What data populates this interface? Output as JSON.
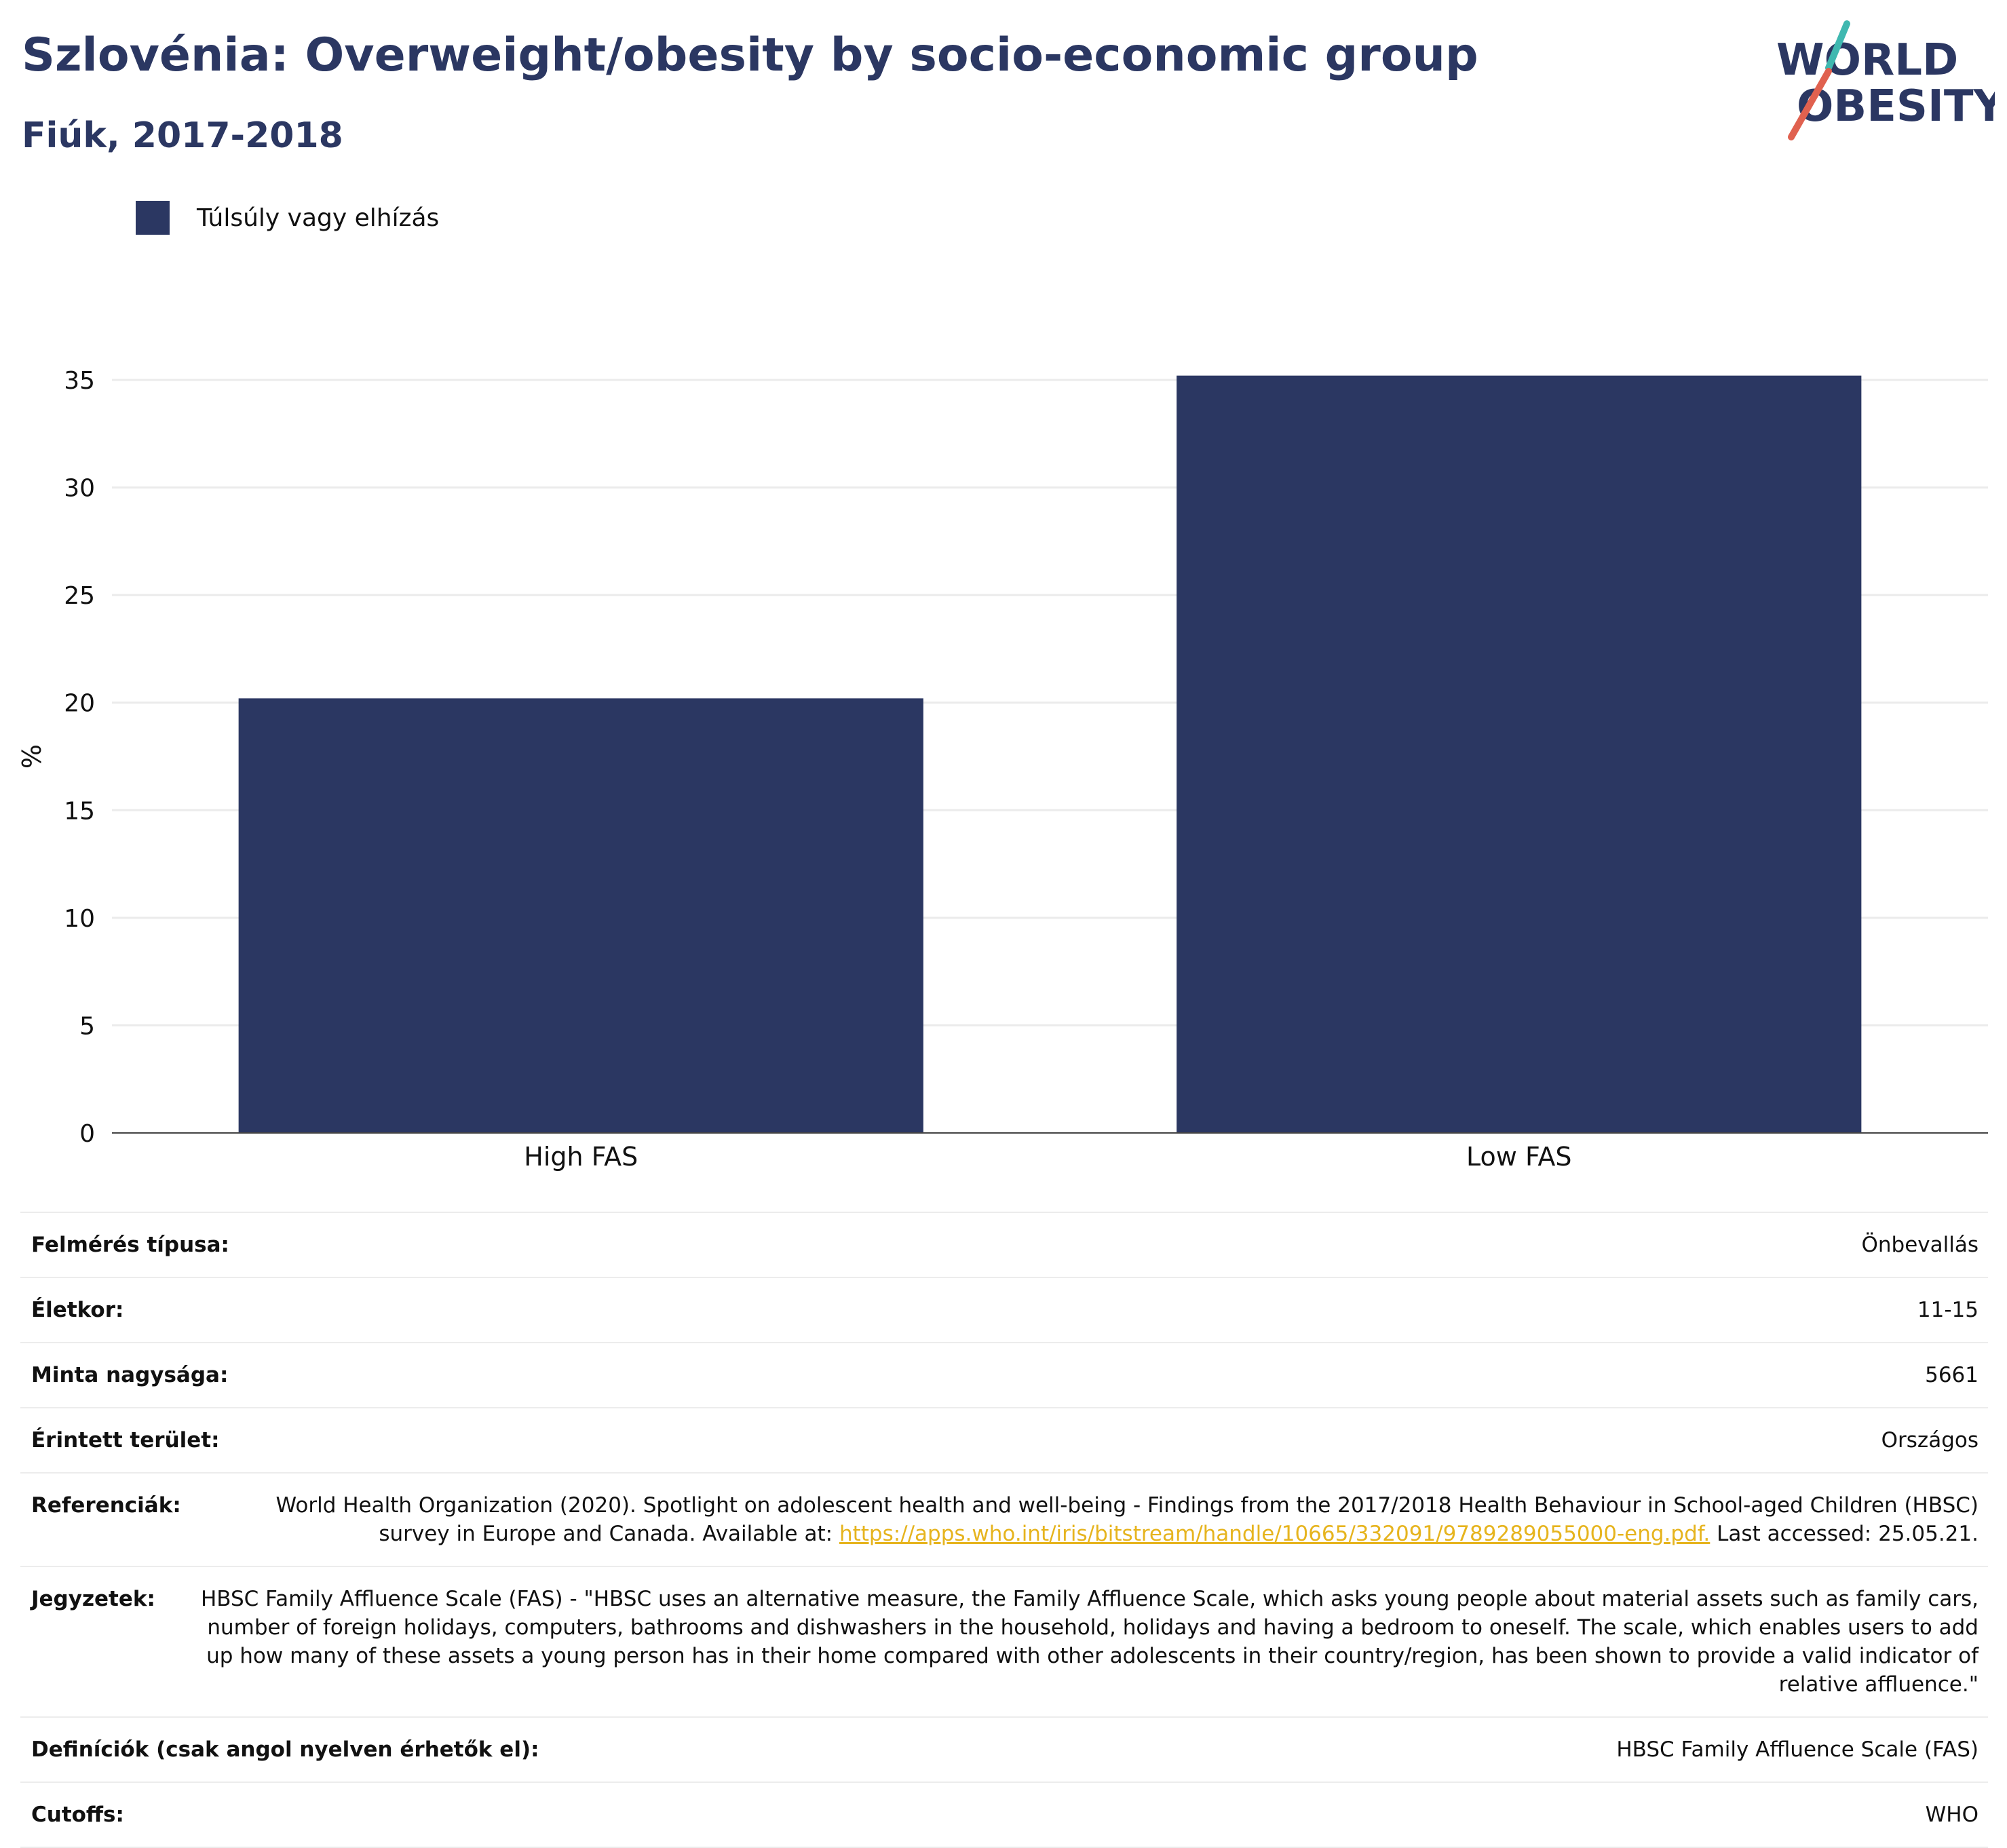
{
  "title": "Szlovénia: Overweight/obesity by socio-economic group",
  "subtitle": "Fiúk, 2017-2018",
  "logo": {
    "line1": "WORLD",
    "line2": "OBESITY"
  },
  "colors": {
    "bar": "#2b3762",
    "title": "#2b3762",
    "link": "#e6b41e",
    "logo_teal": "#3fb8b0",
    "logo_red": "#e0614f"
  },
  "chart_data": {
    "type": "bar",
    "categories": [
      "High FAS",
      "Low FAS"
    ],
    "series": [
      {
        "name": "Túlsúly vagy elhízás",
        "values": [
          20.2,
          35.2
        ]
      }
    ],
    "ylabel": "%",
    "xlabel": "",
    "ylim": [
      0,
      35
    ],
    "yticks": [
      0,
      5,
      10,
      15,
      20,
      25,
      30,
      35
    ],
    "grid": true,
    "legend": "top-left"
  },
  "info": [
    {
      "label": "Felmérés típusa:",
      "value": "Önbevallás"
    },
    {
      "label": "Életkor:",
      "value": "11-15"
    },
    {
      "label": "Minta nagysága:",
      "value": "5661"
    },
    {
      "label": "Érintett terület:",
      "value": "Országos"
    },
    {
      "label": "Referenciák:",
      "value": "World Health Organization (2020). Spotlight on adolescent health and well-being - Findings from the 2017/2018 Health Behaviour in School-aged Children (HBSC) survey in Europe and Canada. Available at:",
      "link": "https://apps.who.int/iris/bitstream/handle/10665/332091/9789289055000-eng.pdf.",
      "suffix": " Last accessed: 25.05.21."
    },
    {
      "label": "Jegyzetek:",
      "value": "HBSC Family Affluence Scale (FAS) - \"HBSC uses an alternative measure, the Family Affluence Scale, which asks young people about material assets such as family cars, number of foreign holidays, computers, bathrooms and dishwashers in the household, holidays and having a bedroom to oneself. The scale, which enables users to add up how many of these assets a young person has in their home compared with other adolescents in their country/region, has been shown to provide a valid indicator of relative affluence.\""
    },
    {
      "label": "Definíciók (csak angol nyelven érhetők el):",
      "value": "HBSC Family Affluence Scale (FAS)"
    },
    {
      "label": "Cutoffs:",
      "value": "WHO"
    }
  ]
}
